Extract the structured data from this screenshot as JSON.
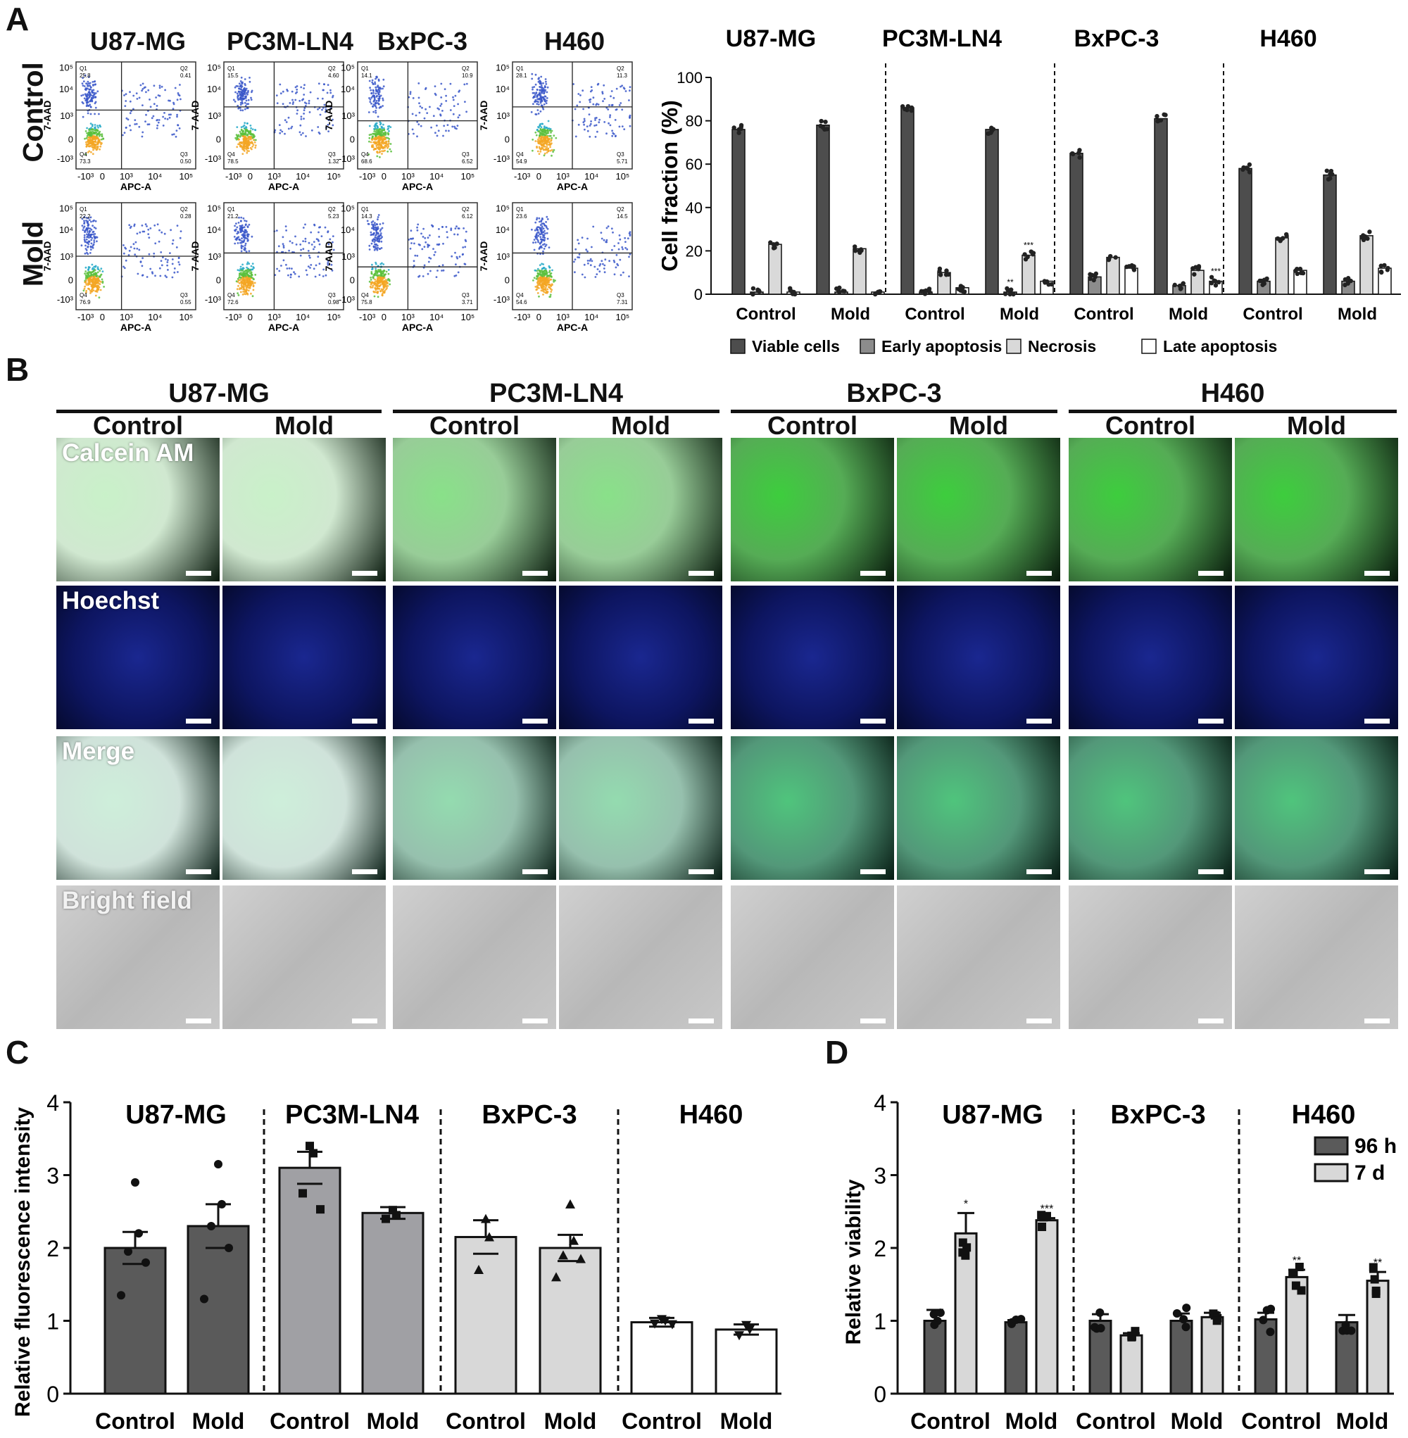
{
  "panels": {
    "a": "A",
    "b": "B",
    "c": "C",
    "d": "D"
  },
  "cell_lines": [
    "U87-MG",
    "PC3M-LN4",
    "BxPC-3",
    "H460"
  ],
  "conditions": [
    "Control",
    "Mold"
  ],
  "flow": {
    "ylabel": "7-AAD",
    "xlabel": "APC-A",
    "xticks": [
      "-10³",
      "0",
      "10³",
      "10⁴",
      "10⁵"
    ],
    "yticks": [
      "10⁵",
      "10⁴",
      "10³",
      "0",
      "-10³"
    ],
    "quadrant_names": [
      "Q1",
      "Q2",
      "Q3",
      "Q4"
    ],
    "quadrants": [
      {
        "line": "U87-MG",
        "condition": "Control",
        "q1": "25.8",
        "q2": "0.41",
        "q3": "0.50",
        "q4": "73.3"
      },
      {
        "line": "PC3M-LN4",
        "condition": "Control",
        "q1": "15.5",
        "q2": "4.60",
        "q3": "1.32",
        "q4": "78.5"
      },
      {
        "line": "BxPC-3",
        "condition": "Control",
        "q1": "14.1",
        "q2": "10.9",
        "q3": "6.52",
        "q4": "68.6"
      },
      {
        "line": "H460",
        "condition": "Control",
        "q1": "28.1",
        "q2": "11.3",
        "q3": "5.71",
        "q4": "54.9"
      },
      {
        "line": "U87-MG",
        "condition": "Mold",
        "q1": "22.2",
        "q2": "0.28",
        "q3": "0.55",
        "q4": "76.9"
      },
      {
        "line": "PC3M-LN4",
        "condition": "Mold",
        "q1": "21.2",
        "q2": "5.23",
        "q3": "0.98",
        "q4": "72.6"
      },
      {
        "line": "BxPC-3",
        "condition": "Mold",
        "q1": "14.3",
        "q2": "6.12",
        "q3": "3.71",
        "q4": "75.8"
      },
      {
        "line": "H460",
        "condition": "Mold",
        "q1": "23.6",
        "q2": "14.5",
        "q3": "7.31",
        "q4": "54.6"
      }
    ]
  },
  "stains": [
    "Calcein AM",
    "Hoechst",
    "Merge",
    "Bright field"
  ],
  "colors": {
    "viable": "#4d4d4d",
    "early": "#8c8c8c",
    "necrosis": "#d9d9d9",
    "late": "#ffffff",
    "green": "#2fa82f",
    "blue": "#101a6e",
    "bright": "#c4c4c4"
  },
  "chart_data": [
    {
      "type": "bar",
      "panel": "A",
      "ylabel": "Cell fraction (%)",
      "ylim": [
        0,
        100
      ],
      "yticks": [
        0,
        20,
        40,
        60,
        80,
        100
      ],
      "groups": [
        "U87-MG",
        "PC3M-LN4",
        "BxPC-3",
        "H460"
      ],
      "categories": [
        "Control",
        "Mold",
        "Control",
        "Mold",
        "Control",
        "Mold",
        "Control",
        "Mold"
      ],
      "series": [
        {
          "name": "Viable cells",
          "values": [
            76,
            78,
            86,
            76,
            65,
            81,
            58,
            55
          ]
        },
        {
          "name": "Early apoptosis",
          "values": [
            1,
            1,
            1,
            1,
            8,
            4,
            6,
            6
          ]
        },
        {
          "name": "Necrosis",
          "values": [
            23,
            21,
            10,
            18,
            17,
            11,
            26,
            27
          ]
        },
        {
          "name": "Late apoptosis",
          "values": [
            1,
            1,
            3,
            6,
            12,
            6,
            11,
            12
          ]
        }
      ],
      "significance": [
        {
          "category": 3,
          "series": 1,
          "label": "**"
        },
        {
          "category": 3,
          "series": 2,
          "label": "***"
        },
        {
          "category": 5,
          "series": 3,
          "label": "***"
        }
      ],
      "legend_position": "bottom"
    },
    {
      "type": "bar",
      "panel": "C",
      "ylabel": "Relative fluorescence intensity",
      "ylim": [
        0,
        4
      ],
      "yticks": [
        0,
        1,
        2,
        3,
        4
      ],
      "groups": [
        "U87-MG",
        "PC3M-LN4",
        "BxPC-3",
        "H460"
      ],
      "categories": [
        "Control",
        "Mold",
        "Control",
        "Mold",
        "Control",
        "Mold",
        "Control",
        "Mold"
      ],
      "values": [
        2.0,
        2.3,
        3.1,
        2.48,
        2.15,
        2.0,
        0.98,
        0.88
      ],
      "errors": [
        0.22,
        0.3,
        0.22,
        0.08,
        0.23,
        0.18,
        0.06,
        0.07
      ],
      "points": [
        [
          2.9,
          2.2,
          1.95,
          1.8,
          1.35
        ],
        [
          3.15,
          2.6,
          2.3,
          2.0,
          1.3
        ],
        [
          3.4,
          3.3,
          2.75,
          2.53
        ],
        [
          2.52,
          2.45,
          2.4
        ],
        [
          2.4,
          2.15,
          1.7
        ],
        [
          2.6,
          2.1,
          1.9,
          1.85,
          1.6
        ],
        [
          1.02,
          1.0,
          0.96,
          0.95
        ],
        [
          0.94,
          0.88,
          0.8
        ]
      ]
    },
    {
      "type": "bar",
      "panel": "D",
      "ylabel": "Relative viability",
      "ylim": [
        0,
        4
      ],
      "yticks": [
        0,
        1,
        2,
        3,
        4
      ],
      "groups": [
        "U87-MG",
        "BxPC-3",
        "H460"
      ],
      "categories": [
        "Control",
        "Mold",
        "Control",
        "Mold",
        "Control",
        "Mold"
      ],
      "series": [
        {
          "name": "96 h",
          "values": [
            1.0,
            0.98,
            1.0,
            1.0,
            1.02,
            0.98
          ],
          "errors": [
            0.15,
            0.03,
            0.09,
            0.1,
            0.09,
            0.1
          ]
        },
        {
          "name": "7 d",
          "values": [
            2.2,
            2.38,
            0.8,
            1.05,
            1.6,
            1.55
          ],
          "errors": [
            0.28,
            0.03,
            0.03,
            0.06,
            0.1,
            0.12
          ]
        }
      ],
      "significance": [
        {
          "category": 0,
          "series": 1,
          "label": "*"
        },
        {
          "category": 1,
          "series": 1,
          "label": "***"
        },
        {
          "category": 4,
          "series": 1,
          "label": "**"
        },
        {
          "category": 5,
          "series": 1,
          "label": "**"
        }
      ],
      "legend_position": "top-right"
    }
  ]
}
